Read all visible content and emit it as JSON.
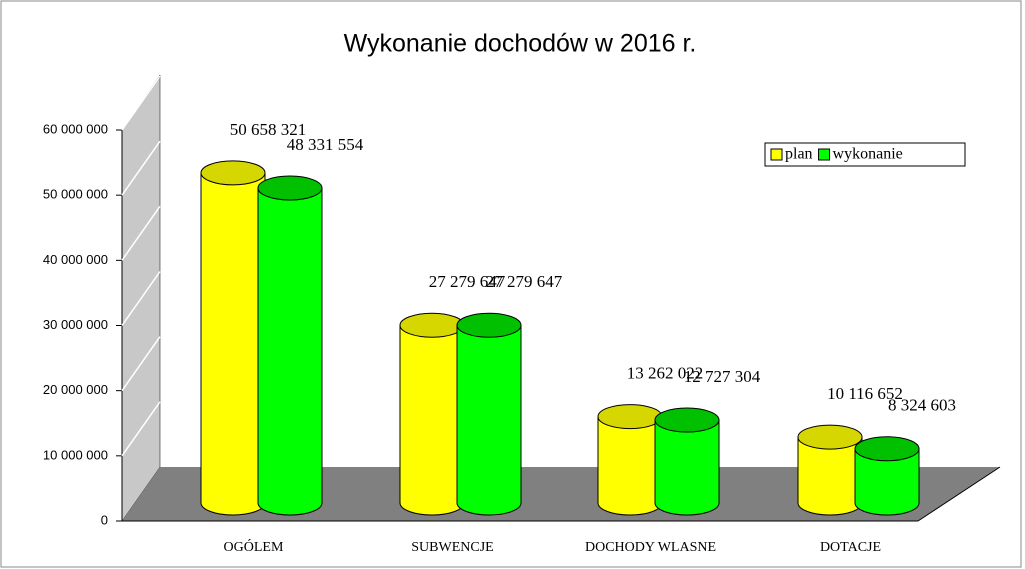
{
  "chart_data": {
    "type": "bar",
    "title": "Wykonanie dochodów w  2016 r.",
    "categories": [
      "OGÓLEM",
      "SUBWENCJE",
      "DOCHODY WLASNE",
      "DOTACJE"
    ],
    "series": [
      {
        "name": "plan",
        "color": "#ffff00",
        "values": [
          50658321,
          27279647,
          13262022,
          10116652
        ],
        "value_labels": [
          "50 658 321",
          "27 279 647",
          "13 262 022",
          "10 116 652"
        ]
      },
      {
        "name": "wykonanie",
        "color": "#00ff00",
        "values": [
          48331554,
          27279647,
          12727304,
          8324603
        ],
        "value_labels": [
          "48 331 554",
          "27 279 647",
          "12 727 304",
          "8 324 603"
        ]
      }
    ],
    "ylim": [
      0,
      60000000
    ],
    "yticks": [
      0,
      {
        "value": 10000000,
        "label": "10 000 000"
      },
      {
        "value": 20000000,
        "label": "20 000 000"
      },
      {
        "value": 30000000,
        "label": "30 000 000"
      },
      {
        "value": 40000000,
        "label": "40 000 000"
      },
      {
        "value": 50000000,
        "label": "50 000 000"
      },
      {
        "value": 60000000,
        "label": "60 000 000"
      }
    ],
    "grid": true,
    "legend": "top-right"
  }
}
